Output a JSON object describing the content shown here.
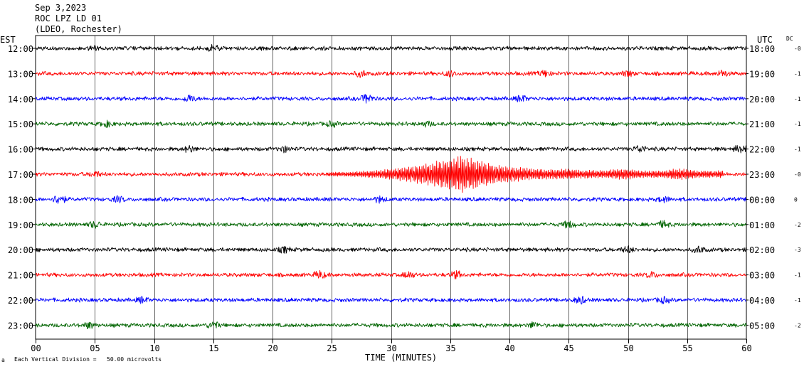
{
  "header": {
    "date": "Sep 3,2023",
    "station": "ROC LPZ LD 01",
    "network": "(LDEO, Rochester)"
  },
  "left_axis_label": "EST",
  "right_axis_label": "UTC",
  "dc_label": "DC",
  "footer": {
    "scale_note": "Each Vertical Division =   50.00 microvolts",
    "corner_mark": "a"
  },
  "chart_data": {
    "type": "line",
    "title": "",
    "xlabel": "TIME (MINUTES)",
    "xlim": [
      0,
      60
    ],
    "x_ticks": [
      "00",
      "05",
      "10",
      "15",
      "20",
      "25",
      "30",
      "35",
      "40",
      "45",
      "50",
      "55",
      "60"
    ],
    "trace_colors": [
      "#000000",
      "#ff0000",
      "#0000ff",
      "#006400"
    ],
    "rows": [
      {
        "est": "12:00",
        "utc": "18:00",
        "dc": "-0",
        "color": "#000000",
        "bursts": [
          [
            15,
            0.4
          ],
          [
            5,
            0.3
          ]
        ]
      },
      {
        "est": "13:00",
        "utc": "19:00",
        "dc": "-1",
        "color": "#ff0000",
        "bursts": [
          [
            27.5,
            0.4
          ],
          [
            35,
            0.35
          ],
          [
            43,
            0.4
          ],
          [
            50,
            0.35
          ],
          [
            58,
            0.4
          ]
        ]
      },
      {
        "est": "14:00",
        "utc": "20:00",
        "dc": "-1",
        "color": "#0000ff",
        "bursts": [
          [
            13,
            0.45
          ],
          [
            28,
            0.6
          ],
          [
            41,
            0.4
          ]
        ]
      },
      {
        "est": "15:00",
        "utc": "21:00",
        "dc": "-1",
        "color": "#006400",
        "bursts": [
          [
            6,
            0.35
          ],
          [
            25,
            0.3
          ],
          [
            33,
            0.3
          ]
        ]
      },
      {
        "est": "16:00",
        "utc": "22:00",
        "dc": "-1",
        "color": "#000000",
        "bursts": [
          [
            13,
            0.4
          ],
          [
            21,
            0.35
          ],
          [
            51,
            0.45
          ],
          [
            59.5,
            0.5
          ]
        ]
      },
      {
        "est": "17:00",
        "utc": "23:00",
        "dc": "-0",
        "color": "#ff0000",
        "event": {
          "start": 24.5,
          "peak": 36,
          "end": 58
        },
        "bursts": [
          [
            5,
            0.35
          ]
        ]
      },
      {
        "est": "18:00",
        "utc": "00:00",
        "dc": "0",
        "color": "#0000ff",
        "bursts": [
          [
            2,
            0.7
          ],
          [
            7,
            0.35
          ],
          [
            29,
            0.35
          ],
          [
            53,
            0.35
          ]
        ]
      },
      {
        "est": "19:00",
        "utc": "01:00",
        "dc": "-2",
        "color": "#006400",
        "bursts": [
          [
            5,
            0.4
          ],
          [
            45,
            0.45
          ],
          [
            53,
            0.4
          ]
        ]
      },
      {
        "est": "20:00",
        "utc": "02:00",
        "dc": "-3",
        "color": "#000000",
        "bursts": [
          [
            21,
            0.35
          ],
          [
            50,
            0.4
          ],
          [
            56,
            0.4
          ]
        ]
      },
      {
        "est": "21:00",
        "utc": "03:00",
        "dc": "-1",
        "color": "#ff0000",
        "bursts": [
          [
            24,
            0.45
          ],
          [
            31.5,
            0.4
          ],
          [
            35.5,
            0.45
          ],
          [
            52,
            0.35
          ]
        ]
      },
      {
        "est": "22:00",
        "utc": "04:00",
        "dc": "-1",
        "color": "#0000ff",
        "bursts": [
          [
            9,
            0.35
          ],
          [
            46,
            0.45
          ],
          [
            53,
            0.35
          ]
        ]
      },
      {
        "est": "23:00",
        "utc": "05:00",
        "dc": "-2",
        "color": "#006400",
        "bursts": [
          [
            4.5,
            0.4
          ],
          [
            15,
            0.45
          ],
          [
            42,
            0.35
          ]
        ]
      }
    ]
  }
}
